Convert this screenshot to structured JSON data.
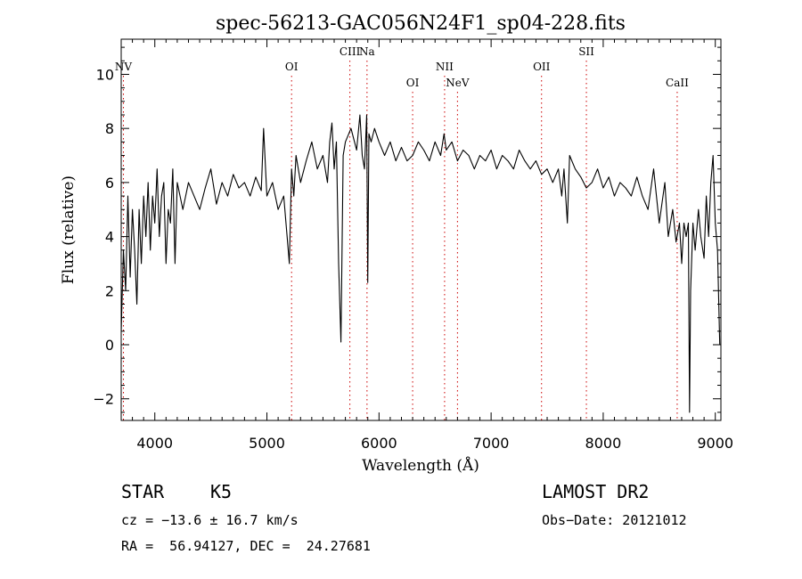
{
  "chart_data": {
    "type": "line",
    "title": "spec-56213-GAC056N24F1_sp04-228.fits",
    "xlabel": "Wavelength (Å)",
    "ylabel": "Flux (relative)",
    "xlim": [
      3700,
      9050
    ],
    "ylim": [
      -2.8,
      11.3
    ],
    "xticks": [
      4000,
      5000,
      6000,
      7000,
      8000,
      9000
    ],
    "yticks": [
      -2,
      0,
      2,
      4,
      6,
      8,
      10
    ],
    "grid": false,
    "line_color": "#000000",
    "line_marker_color": "#cc0000",
    "spectral_lines": [
      {
        "label": "NV",
        "x": 3720,
        "label_level": "mid"
      },
      {
        "label": "OI",
        "x": 5220,
        "label_level": "mid"
      },
      {
        "label": "CIII",
        "x": 5740,
        "label_level": "high"
      },
      {
        "label": "Na",
        "x": 5893,
        "label_level": "high"
      },
      {
        "label": "OI",
        "x": 6300,
        "label_level": "low"
      },
      {
        "label": "NII",
        "x": 6585,
        "label_level": "mid"
      },
      {
        "label": "NeV",
        "x": 6700,
        "label_level": "low"
      },
      {
        "label": "OII",
        "x": 7450,
        "label_level": "mid"
      },
      {
        "label": "SII",
        "x": 7850,
        "label_level": "high"
      },
      {
        "label": "CaII",
        "x": 8660,
        "label_level": "low"
      }
    ],
    "series": [
      {
        "x": [
          3700,
          3720,
          3740,
          3760,
          3780,
          3800,
          3820,
          3840,
          3860,
          3880,
          3900,
          3920,
          3940,
          3960,
          3980,
          4000,
          4020,
          4040,
          4060,
          4080,
          4100,
          4120,
          4140,
          4160,
          4180,
          4200,
          4250,
          4300,
          4350,
          4400,
          4450,
          4500,
          4550,
          4600,
          4650,
          4700,
          4750,
          4800,
          4850,
          4900,
          4950,
          4970,
          5000,
          5050,
          5100,
          5150,
          5180,
          5200,
          5220,
          5240,
          5260,
          5300,
          5350,
          5400,
          5450,
          5500,
          5540,
          5560,
          5580,
          5600,
          5620,
          5640,
          5660,
          5680,
          5700,
          5750,
          5800,
          5830,
          5850,
          5870,
          5890,
          5900,
          5910,
          5930,
          5960,
          6000,
          6050,
          6100,
          6150,
          6200,
          6250,
          6300,
          6350,
          6400,
          6450,
          6500,
          6550,
          6580,
          6600,
          6650,
          6700,
          6750,
          6800,
          6850,
          6900,
          6950,
          7000,
          7050,
          7100,
          7150,
          7200,
          7250,
          7300,
          7350,
          7400,
          7450,
          7500,
          7550,
          7600,
          7630,
          7650,
          7680,
          7700,
          7750,
          7800,
          7850,
          7900,
          7950,
          8000,
          8050,
          8100,
          8150,
          8200,
          8250,
          8300,
          8350,
          8400,
          8450,
          8500,
          8550,
          8580,
          8620,
          8650,
          8680,
          8700,
          8720,
          8740,
          8760,
          8770,
          8780,
          8800,
          8820,
          8850,
          8870,
          8900,
          8920,
          8940,
          8960,
          8980,
          9000,
          9020,
          9040
        ],
        "y": [
          0.5,
          3.5,
          2.0,
          5.5,
          2.5,
          5.0,
          3.5,
          1.5,
          5.0,
          3.0,
          5.5,
          4.0,
          6.0,
          3.5,
          5.5,
          4.5,
          6.5,
          4.0,
          5.5,
          6.0,
          3.0,
          5.0,
          4.5,
          6.5,
          3.0,
          6.0,
          5.0,
          6.0,
          5.5,
          5.0,
          5.8,
          6.5,
          5.2,
          6.0,
          5.5,
          6.3,
          5.8,
          6.0,
          5.5,
          6.2,
          5.7,
          8.0,
          5.5,
          6.0,
          5.0,
          5.5,
          4.0,
          3.0,
          6.5,
          5.5,
          7.0,
          6.0,
          6.8,
          7.5,
          6.5,
          7.0,
          6.0,
          7.5,
          8.2,
          6.5,
          7.5,
          3.0,
          0.1,
          7.0,
          7.5,
          8.0,
          7.2,
          8.5,
          7.0,
          6.5,
          8.5,
          2.3,
          7.8,
          7.5,
          8.0,
          7.5,
          7.0,
          7.5,
          6.8,
          7.3,
          6.8,
          7.0,
          7.5,
          7.2,
          6.8,
          7.5,
          7.0,
          7.8,
          7.2,
          7.5,
          6.8,
          7.2,
          7.0,
          6.5,
          7.0,
          6.8,
          7.2,
          6.5,
          7.0,
          6.8,
          6.5,
          7.2,
          6.8,
          6.5,
          6.8,
          6.3,
          6.5,
          6.0,
          6.5,
          5.5,
          6.5,
          4.5,
          7.0,
          6.5,
          6.2,
          5.8,
          6.0,
          6.5,
          5.8,
          6.2,
          5.5,
          6.0,
          5.8,
          5.5,
          6.2,
          5.5,
          5.0,
          6.5,
          4.5,
          6.0,
          4.0,
          5.0,
          3.8,
          4.5,
          3.0,
          4.5,
          4.0,
          4.5,
          -2.5,
          2.0,
          4.5,
          3.5,
          5.0,
          4.0,
          3.2,
          5.5,
          4.0,
          6.0,
          7.0,
          4.5,
          3.5,
          0.0
        ]
      }
    ]
  },
  "info": {
    "object_class": "STAR",
    "subclass": "K5",
    "survey": "LAMOST DR2",
    "redshift_line": "cz = −13.6 ± 16.7 km/s",
    "obs_date": "Obs−Date: 20121012",
    "coords_line": "RA =  56.94127, DEC =  24.27681"
  }
}
